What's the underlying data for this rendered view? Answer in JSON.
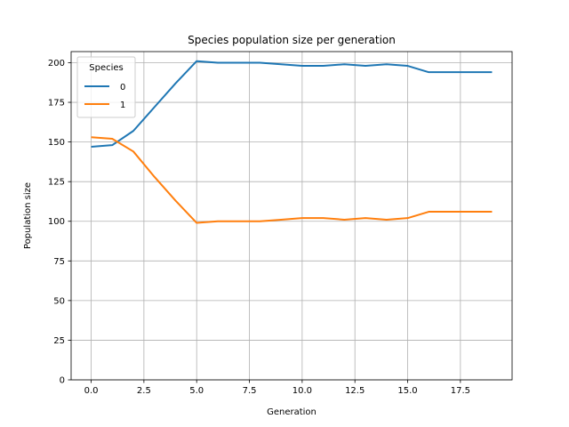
{
  "chart_data": {
    "type": "line",
    "title": "Species population size per generation",
    "xlabel": "Generation",
    "ylabel": "Population size",
    "xlim": [
      -0.95,
      19.95
    ],
    "ylim": [
      0,
      207
    ],
    "xticks": [
      0.0,
      2.5,
      5.0,
      7.5,
      10.0,
      12.5,
      15.0,
      17.5
    ],
    "xtick_labels": [
      "0.0",
      "2.5",
      "5.0",
      "7.5",
      "10.0",
      "12.5",
      "15.0",
      "17.5"
    ],
    "yticks": [
      0,
      25,
      50,
      75,
      100,
      125,
      150,
      175,
      200
    ],
    "ytick_labels": [
      "0",
      "25",
      "50",
      "75",
      "100",
      "125",
      "150",
      "175",
      "200"
    ],
    "grid": true,
    "legend": {
      "title": "Species",
      "placement": "top-left"
    },
    "x": [
      0,
      1,
      2,
      3,
      4,
      5,
      6,
      7,
      8,
      9,
      10,
      11,
      12,
      13,
      14,
      15,
      16,
      17,
      18,
      19
    ],
    "series": [
      {
        "name": "0",
        "color": "#1f77b4",
        "values": [
          147,
          148,
          157,
          172,
          187,
          201,
          200,
          200,
          200,
          199,
          198,
          198,
          199,
          198,
          199,
          198,
          194,
          194,
          194,
          194
        ]
      },
      {
        "name": "1",
        "color": "#ff7f0e",
        "values": [
          153,
          152,
          144,
          128,
          113,
          99,
          100,
          100,
          100,
          101,
          102,
          102,
          101,
          102,
          101,
          102,
          106,
          106,
          106,
          106
        ]
      }
    ]
  }
}
